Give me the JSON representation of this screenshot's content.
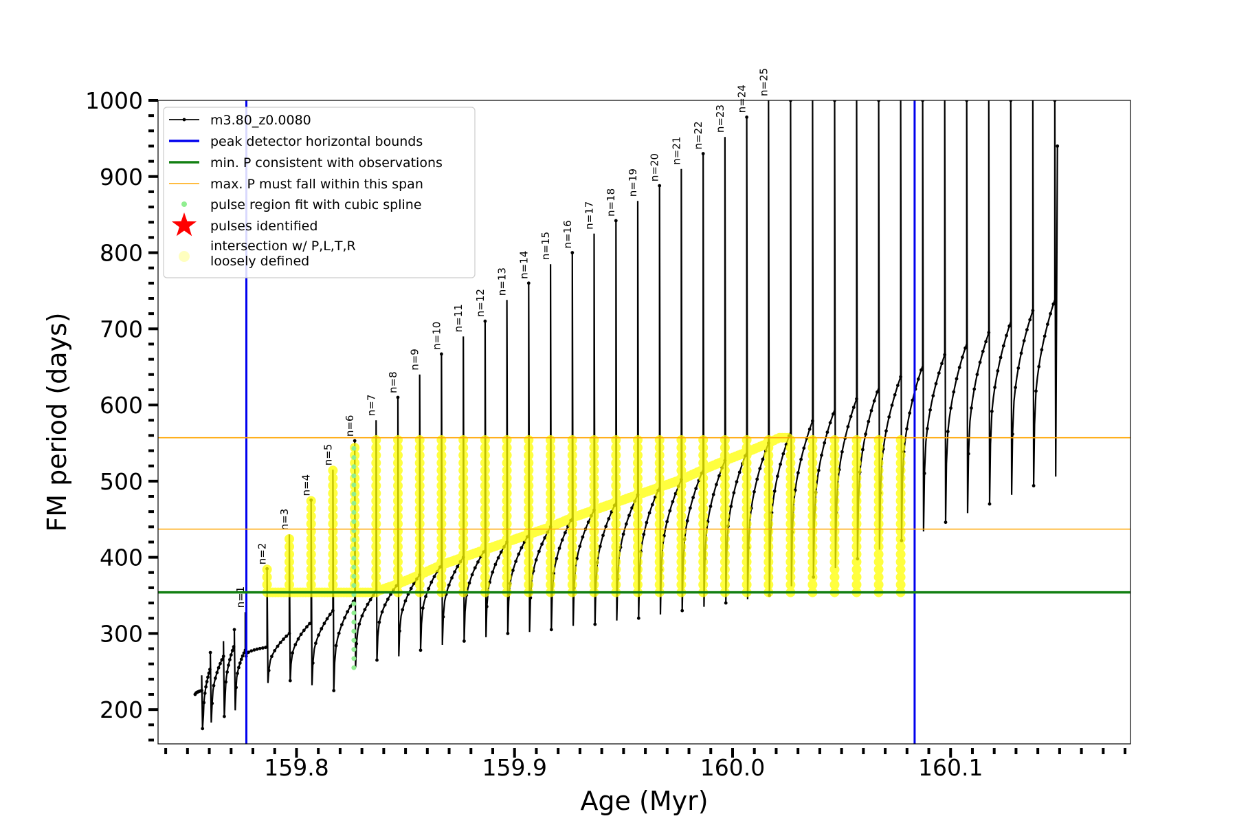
{
  "chart_data": {
    "type": "line",
    "xlabel": "Age (Myr)",
    "ylabel": "FM period (days)",
    "xlim": [
      159.7365,
      160.1825
    ],
    "ylim": [
      155,
      1000
    ],
    "x_ticks": [
      159.8,
      159.9,
      160.0,
      160.1
    ],
    "x_tick_labels": [
      "159.8",
      "159.9",
      "160.0",
      "160.1"
    ],
    "x_minor_step": 0.01,
    "y_ticks": [
      200,
      300,
      400,
      500,
      600,
      700,
      800,
      900,
      1000
    ],
    "y_tick_labels": [
      "200",
      "300",
      "400",
      "500",
      "600",
      "700",
      "800",
      "900",
      "1000"
    ],
    "y_minor_step": 20,
    "grid": false,
    "legend_position": "top-left",
    "colors": {
      "track": "#000000",
      "bounds": "#0000ee",
      "min_p": "#138013",
      "max_p_span": "#ffa500",
      "spline": "#90ee90",
      "star": "#ff0000",
      "intersection": "#ffff00"
    },
    "legend": [
      {
        "label": "m3.80_z0.0080",
        "kind": "track"
      },
      {
        "label": "peak detector horizontal bounds",
        "kind": "bounds"
      },
      {
        "label": "min. P consistent with observations",
        "kind": "min_p"
      },
      {
        "label": "max. P must fall within this span",
        "kind": "max_p_span"
      },
      {
        "label": "pulse region fit with cubic spline",
        "kind": "spline"
      },
      {
        "label": "pulses identified",
        "kind": "star"
      },
      {
        "label": "intersection w/ P,L,T,R",
        "label2": "loosely defined",
        "kind": "intersection"
      }
    ],
    "reference_lines": {
      "vertical_bounds": [
        159.777,
        160.0835
      ],
      "min_period": 354,
      "max_period_span": [
        437,
        557
      ]
    },
    "pulses": [
      {
        "label": "n=1",
        "age": 159.7765,
        "peak": 328,
        "base": 278,
        "min_before": 270
      },
      {
        "label": "n=2",
        "age": 159.7865,
        "peak": 385,
        "base": 282,
        "min_before": 235
      },
      {
        "label": "n=3",
        "age": 159.7967,
        "peak": 430,
        "base": 300,
        "min_before": 238
      },
      {
        "label": "n=4",
        "age": 159.8067,
        "peak": 475,
        "base": 315,
        "min_before": 232
      },
      {
        "label": "n=5",
        "age": 159.8167,
        "peak": 515,
        "base": 330,
        "min_before": 225
      },
      {
        "label": "n=6",
        "age": 159.8267,
        "peak": 553,
        "base": 345,
        "min_before": 255
      },
      {
        "label": "n=7",
        "age": 159.8365,
        "peak": 580,
        "base": 355,
        "min_before": 265
      },
      {
        "label": "n=8",
        "age": 159.8465,
        "peak": 610,
        "base": 365,
        "min_before": 270
      },
      {
        "label": "n=9",
        "age": 159.8565,
        "peak": 640,
        "base": 377,
        "min_before": 278
      },
      {
        "label": "n=10",
        "age": 159.8665,
        "peak": 667,
        "base": 390,
        "min_before": 285
      },
      {
        "label": "n=11",
        "age": 159.8765,
        "peak": 690,
        "base": 400,
        "min_before": 290
      },
      {
        "label": "n=12",
        "age": 159.8865,
        "peak": 710,
        "base": 410,
        "min_before": 295
      },
      {
        "label": "n=13",
        "age": 159.8965,
        "peak": 738,
        "base": 420,
        "min_before": 300
      },
      {
        "label": "n=14",
        "age": 159.9065,
        "peak": 760,
        "base": 430,
        "min_before": 302
      },
      {
        "label": "n=15",
        "age": 159.9165,
        "peak": 785,
        "base": 440,
        "min_before": 305
      },
      {
        "label": "n=16",
        "age": 159.9265,
        "peak": 800,
        "base": 452,
        "min_before": 310
      },
      {
        "label": "n=17",
        "age": 159.9365,
        "peak": 825,
        "base": 462,
        "min_before": 312
      },
      {
        "label": "n=18",
        "age": 159.9465,
        "peak": 842,
        "base": 472,
        "min_before": 317
      },
      {
        "label": "n=19",
        "age": 159.9565,
        "peak": 868,
        "base": 482,
        "min_before": 320
      },
      {
        "label": "n=20",
        "age": 159.9665,
        "peak": 888,
        "base": 492,
        "min_before": 325
      },
      {
        "label": "n=21",
        "age": 159.9765,
        "peak": 910,
        "base": 502,
        "min_before": 330
      },
      {
        "label": "n=22",
        "age": 159.9865,
        "peak": 930,
        "base": 515,
        "min_before": 335
      },
      {
        "label": "n=23",
        "age": 159.9965,
        "peak": 952,
        "base": 527,
        "min_before": 340
      },
      {
        "label": "n=24",
        "age": 160.0065,
        "peak": 978,
        "base": 538,
        "min_before": 345
      },
      {
        "label": "n=25",
        "age": 160.0165,
        "peak": 1000,
        "base": 550,
        "min_before": 350
      }
    ]
  }
}
